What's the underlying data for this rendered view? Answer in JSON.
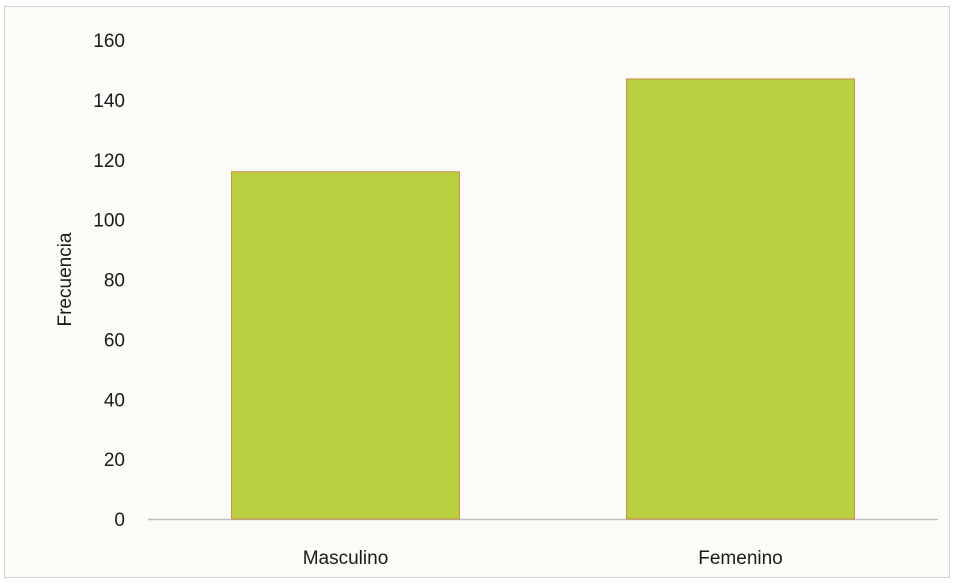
{
  "chart_data": {
    "type": "bar",
    "categories": [
      "Masculino",
      "Femenino"
    ],
    "values": [
      116,
      147
    ],
    "title": "",
    "xlabel": "",
    "ylabel": "Frecuencia",
    "ylim": [
      0,
      160
    ],
    "yticks": [
      0,
      20,
      40,
      60,
      80,
      100,
      120,
      140,
      160
    ],
    "grid": false,
    "legend": "none",
    "colors": {
      "bar_fill": "#b9cf3f",
      "bar_edge": "#c97a3a",
      "axis": "#bdbdbd"
    }
  }
}
